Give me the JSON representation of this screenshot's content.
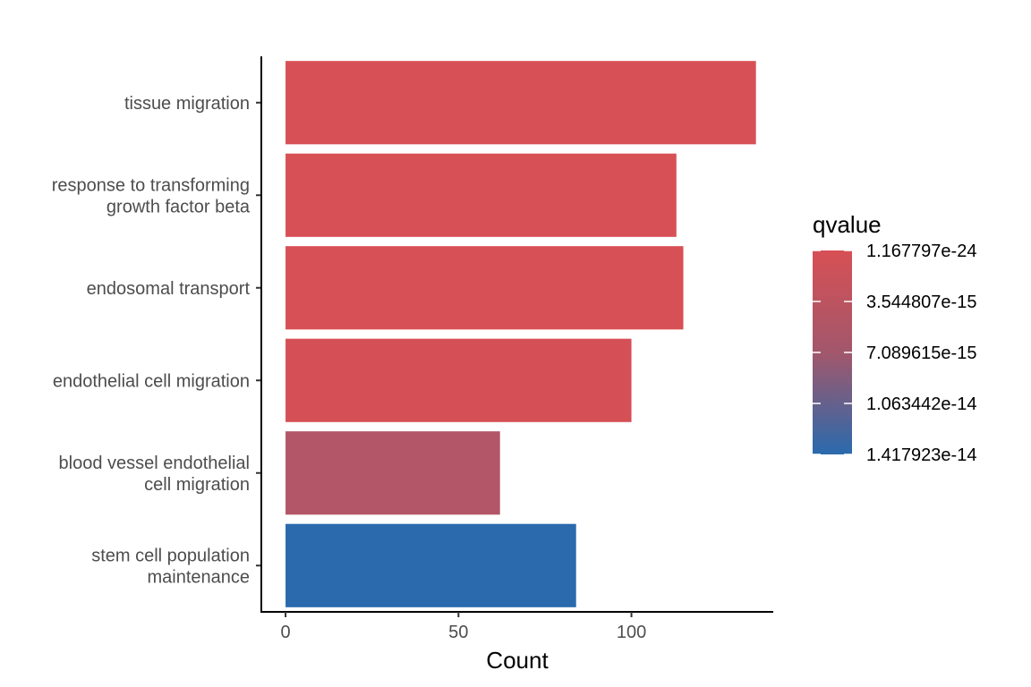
{
  "chart_data": {
    "type": "bar",
    "orientation": "horizontal",
    "categories": [
      [
        "tissue migration"
      ],
      [
        "response to transforming",
        "growth factor beta"
      ],
      [
        "endosomal transport"
      ],
      [
        "endothelial cell migration"
      ],
      [
        "blood vessel endothelial",
        "cell migration"
      ],
      [
        "stem cell population",
        "maintenance"
      ]
    ],
    "values": [
      136,
      113,
      115,
      100,
      62,
      84
    ],
    "qvalues": [
      1.2e-24,
      5e-18,
      3e-17,
      2e-16,
      3e-15,
      1.417923e-14
    ],
    "xlabel": "Count",
    "ylabel": "",
    "xlim": [
      -7,
      141
    ],
    "xticks": [
      0,
      50,
      100
    ],
    "xtick_labels": [
      "0",
      "50",
      "100"
    ],
    "grid": false,
    "legend": {
      "title": "qvalue",
      "placement": "right",
      "type": "colorbar",
      "low_color": "#d75055",
      "high_color": "#2a6aad",
      "min": 1.167797e-24,
      "max": 1.417923e-14,
      "breaks": [
        1.167797e-24,
        3.544807e-15,
        7.089615e-15,
        1.063442e-14,
        1.417923e-14
      ],
      "labels": [
        "1.167797e-24",
        "3.544807e-15",
        "7.089615e-15",
        "1.063442e-14",
        "1.417923e-14"
      ]
    }
  }
}
